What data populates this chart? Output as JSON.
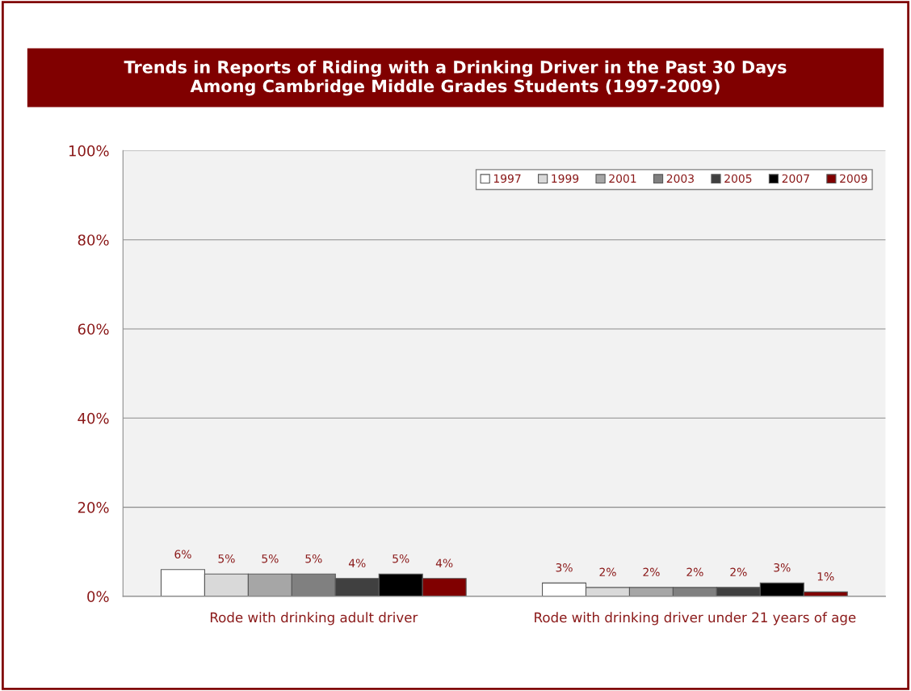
{
  "chart_data": {
    "type": "bar",
    "title": "Trends in Reports of Riding with a Drinking Driver in the Past 30 Days\nAmong Cambridge Middle Grades Students (1997-2009)",
    "categories": [
      "Rode with drinking adult driver",
      "Rode with drinking driver under 21 years of age"
    ],
    "series": [
      {
        "name": "1997",
        "color": "#ffffff",
        "values": [
          6,
          3
        ],
        "value_labels": [
          "6%",
          "3%"
        ]
      },
      {
        "name": "1999",
        "color": "#d9d9d9",
        "values": [
          5,
          2
        ],
        "value_labels": [
          "5%",
          "2%"
        ]
      },
      {
        "name": "2001",
        "color": "#a6a6a6",
        "values": [
          5,
          2
        ],
        "value_labels": [
          "5%",
          "2%"
        ]
      },
      {
        "name": "2003",
        "color": "#808080",
        "values": [
          5,
          2
        ],
        "value_labels": [
          "5%",
          "2%"
        ]
      },
      {
        "name": "2005",
        "color": "#404040",
        "values": [
          4,
          2
        ],
        "value_labels": [
          "4%",
          "2%"
        ]
      },
      {
        "name": "2007",
        "color": "#000000",
        "values": [
          5,
          3
        ],
        "value_labels": [
          "5%",
          "3%"
        ]
      },
      {
        "name": "2009",
        "color": "#800000",
        "values": [
          4,
          1
        ],
        "value_labels": [
          "4%",
          "1%"
        ]
      }
    ],
    "ylim": [
      0,
      100
    ],
    "yticks": [
      {
        "value": 0,
        "label": "0%"
      },
      {
        "value": 20,
        "label": "20%"
      },
      {
        "value": 40,
        "label": "40%"
      },
      {
        "value": 60,
        "label": "60%"
      },
      {
        "value": 80,
        "label": "80%"
      },
      {
        "value": 100,
        "label": "100%"
      }
    ],
    "grid": "y",
    "legend": "top right"
  }
}
